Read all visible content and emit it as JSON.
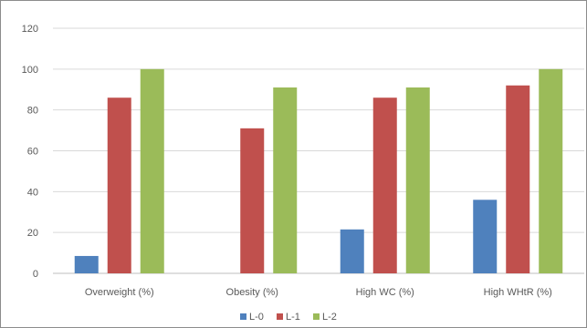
{
  "chart_data": {
    "type": "bar",
    "categories": [
      "Overweight (%)",
      "Obesity (%)",
      "High WC (%)",
      "High WHtR (%)"
    ],
    "series": [
      {
        "name": "L-0",
        "values": [
          8.5,
          0,
          21.5,
          36
        ],
        "color": "#4f81bd"
      },
      {
        "name": "L-1",
        "values": [
          86,
          71,
          86,
          92
        ],
        "color": "#c0504d"
      },
      {
        "name": "L-2",
        "values": [
          100,
          91,
          91,
          100
        ],
        "color": "#9bbb59"
      }
    ],
    "ylim": [
      0,
      120
    ],
    "yticks": [
      "0",
      "20",
      "40",
      "60",
      "80",
      "100",
      "120"
    ],
    "grid": true,
    "legend_position": "bottom"
  }
}
